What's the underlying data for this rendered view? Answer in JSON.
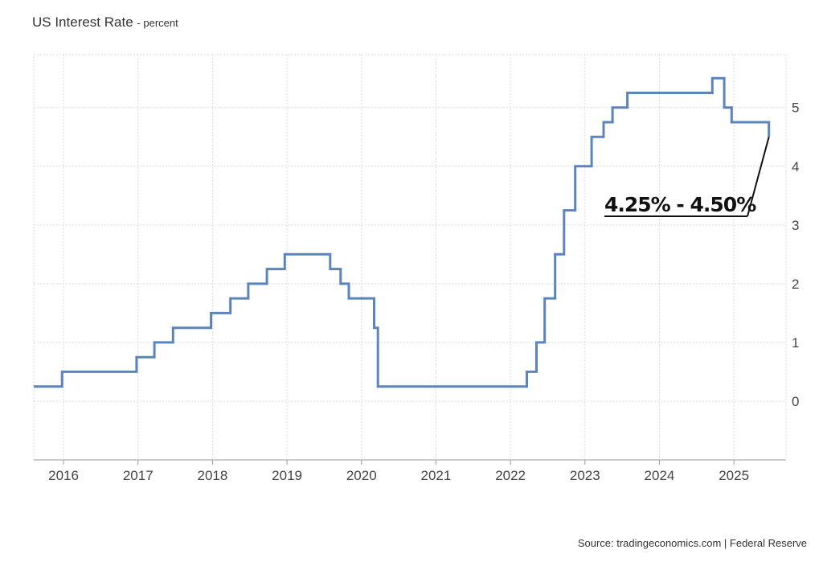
{
  "chart_data": {
    "type": "line",
    "step": true,
    "title": "US Interest Rate",
    "subtitle": "percent",
    "source": "Source: tradingeconomics.com | Federal Reserve",
    "annotation": "4.25% - 4.50%",
    "xlim": [
      2015.6,
      2025.7
    ],
    "ylim": [
      -1,
      5.9
    ],
    "x_ticks": [
      2016,
      2017,
      2018,
      2019,
      2020,
      2021,
      2022,
      2023,
      2024,
      2025
    ],
    "y_ticks": [
      0,
      1,
      2,
      3,
      4,
      5
    ],
    "grid": true,
    "legend": "none",
    "line_color": "#5b84ba",
    "series": [
      {
        "x": [
          2015.6,
          2015.98,
          2016.98,
          2017.22,
          2017.47,
          2017.98,
          2018.24,
          2018.48,
          2018.73,
          2018.97,
          2019.58,
          2019.72,
          2019.83,
          2020.17,
          2020.22,
          2022.22,
          2022.35,
          2022.46,
          2022.6,
          2022.72,
          2022.87,
          2023.09,
          2023.25,
          2023.37,
          2023.57,
          2024.71,
          2024.87,
          2024.97,
          2025.47
        ],
        "y": [
          0.25,
          0.5,
          0.75,
          1.0,
          1.25,
          1.5,
          1.75,
          2.0,
          2.25,
          2.5,
          2.25,
          2.0,
          1.75,
          1.25,
          0.25,
          0.5,
          1.0,
          1.75,
          2.5,
          3.25,
          4.0,
          4.5,
          4.75,
          5.0,
          5.25,
          5.5,
          5.0,
          4.75,
          4.5
        ]
      }
    ]
  }
}
